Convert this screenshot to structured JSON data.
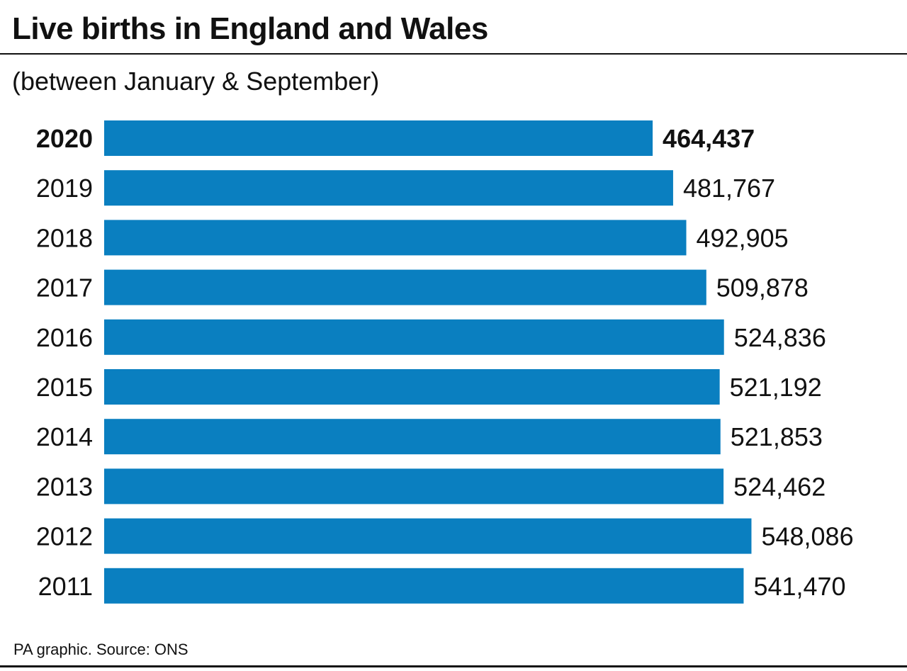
{
  "chart_data": {
    "type": "bar",
    "orientation": "horizontal",
    "title": "Live births in England and Wales",
    "subtitle": "(between January & September)",
    "categories": [
      "2020",
      "2019",
      "2018",
      "2017",
      "2016",
      "2015",
      "2014",
      "2013",
      "2012",
      "2011"
    ],
    "values": [
      464437,
      481767,
      492905,
      509878,
      524836,
      521192,
      521853,
      524462,
      548086,
      541470
    ],
    "value_labels": [
      "464,437",
      "481,767",
      "492,905",
      "509,878",
      "524,836",
      "521,192",
      "521,853",
      "524,462",
      "548,086",
      "541,470"
    ],
    "highlight": "2020",
    "xlim": [
      0,
      600000
    ],
    "grid": false,
    "bar_color": "#0a7fc0",
    "source": "PA graphic. Source: ONS"
  }
}
